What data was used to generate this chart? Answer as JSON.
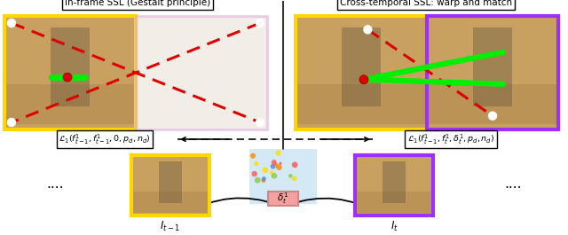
{
  "bg_color": "#ffffff",
  "title_left": "In-frame SSL (Gestalt principle)",
  "title_right": "Cross-temporal SSL: warp and match",
  "label_left": "$\\mathcal{L}_1(f^1_{t-1}, f^1_{t-1}, 0, p_d, n_d)$",
  "label_right": "$\\mathcal{L}_1(f^1_{t-1}, f^1_t, \\delta^1_t, p_d, n_d)$",
  "label_delta": "$\\delta^1_t$",
  "label_It1": "$I_{t-1}$",
  "label_It": "$I_t$",
  "dots": "....",
  "border_yellow": "#FFD700",
  "border_purple": "#9B30FF",
  "border_pink_light": "#DDA0DD",
  "box_pink_border": "#CC8888",
  "box_pink_face": "#F4A0A0",
  "arrow_color": "#111111",
  "red_dashed_color": "#DD0000",
  "green_line_color": "#00EE00",
  "white_dot_color": "#FFFFFF",
  "img_sand": "#C8A060",
  "img_faded": "#E8DDD0",
  "img_faded_alpha": 0.5,
  "separator_color": "#333333"
}
